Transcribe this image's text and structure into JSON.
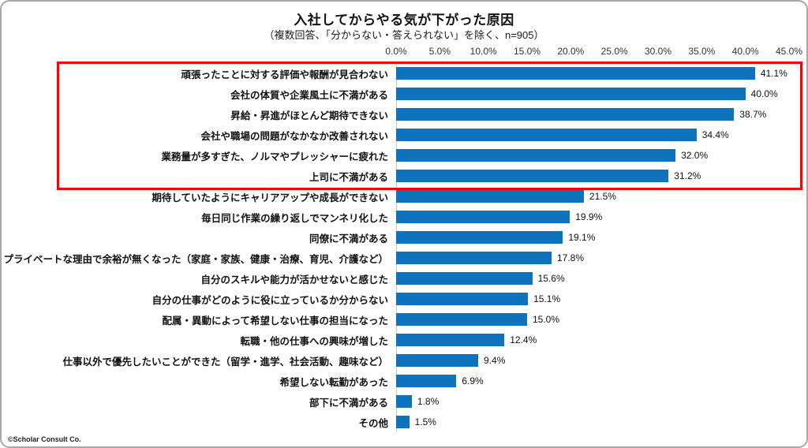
{
  "title": "入社してからやる気が下がった原因",
  "subtitle": "（複数回答、「分からない・答えられない」を除く、n=905）",
  "footer": "©Scholar Consult Co.",
  "chart_data": {
    "type": "bar",
    "orientation": "horizontal",
    "title": "入社してからやる気が下がった原因",
    "subtitle": "（複数回答、「分からない・答えられない」を除く、n=905）",
    "categories": [
      "頑張ったことに対する評価や報酬が見合わない",
      "会社の体質や企業風土に不満がある",
      "昇給・昇進がほとんど期待できない",
      "会社や職場の問題がなかなか改善されない",
      "業務量が多すぎた、ノルマやプレッシャーに疲れた",
      "上司に不満がある",
      "期待していたようにキャリアアップや成長ができない",
      "毎日同じ作業の繰り返しでマンネリ化した",
      "同僚に不満がある",
      "プライベートな理由で余裕が無くなった（家庭・家族、健康・治療、育児、介護など）",
      "自分のスキルや能力が活かせないと感じた",
      "自分の仕事がどのように役に立っているか分からない",
      "配属・異動によって希望しない仕事の担当になった",
      "転職・他の仕事への興味が増した",
      "仕事以外で優先したいことができた（留学・進学、社会活動、趣味など）",
      "希望しない転勤があった",
      "部下に不満がある",
      "その他"
    ],
    "values": [
      41.1,
      40.0,
      38.7,
      34.4,
      32.0,
      31.2,
      21.5,
      19.9,
      19.1,
      17.8,
      15.6,
      15.1,
      15.0,
      12.4,
      9.4,
      6.9,
      1.8,
      1.5
    ],
    "value_labels": [
      "41.1%",
      "40.0%",
      "38.7%",
      "34.4%",
      "32.0%",
      "31.2%",
      "21.5%",
      "19.9%",
      "19.1%",
      "17.8%",
      "15.6%",
      "15.1%",
      "15.0%",
      "12.4%",
      "9.4%",
      "6.9%",
      "1.8%",
      "1.5%"
    ],
    "x_ticks": [
      "0.0%",
      "5.0%",
      "10.0%",
      "15.0%",
      "20.0%",
      "25.0%",
      "30.0%",
      "35.0%",
      "40.0%",
      "45.0%"
    ],
    "xlim": [
      0,
      45
    ],
    "grid": "off",
    "legend": "none",
    "bar_color": "#0e72bc",
    "highlight_box": {
      "rows_covered": [
        0,
        5
      ],
      "color": "#fe0000"
    }
  }
}
